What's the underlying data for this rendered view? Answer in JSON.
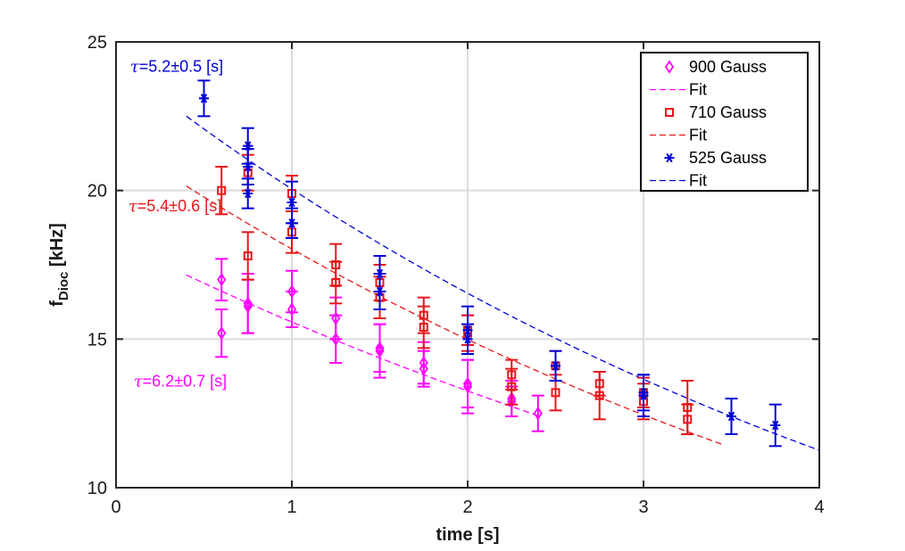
{
  "chart_data": {
    "type": "scatter",
    "xlabel": "time [s]",
    "ylabel_main": "f",
    "ylabel_sub": "Dioc",
    "ylabel_unit": " [kHz]",
    "xlim": [
      0,
      4
    ],
    "ylim": [
      10,
      25
    ],
    "xticks": [
      0,
      1,
      2,
      3,
      4
    ],
    "yticks": [
      10,
      15,
      20,
      25
    ],
    "grid": true,
    "legend_position": "top-right",
    "series": [
      {
        "name": "900 Gauss",
        "color": "#ff00ff",
        "marker": "diamond",
        "fit_name": "Fit",
        "fit": {
          "tau": 6.2,
          "A": 18.3,
          "x_range": [
            0.4,
            2.4
          ]
        },
        "points": [
          {
            "x": 0.6,
            "y": 15.2,
            "err": 0.8
          },
          {
            "x": 0.6,
            "y": 17.0,
            "err": 0.7
          },
          {
            "x": 0.75,
            "y": 16.1,
            "err": 0.9
          },
          {
            "x": 0.75,
            "y": 16.2,
            "err": 1.0
          },
          {
            "x": 1.0,
            "y": 16.0,
            "err": 0.6
          },
          {
            "x": 1.0,
            "y": 16.6,
            "err": 0.7
          },
          {
            "x": 1.25,
            "y": 15.0,
            "err": 0.8
          },
          {
            "x": 1.25,
            "y": 15.7,
            "err": 0.7
          },
          {
            "x": 1.5,
            "y": 14.6,
            "err": 0.9
          },
          {
            "x": 1.5,
            "y": 14.7,
            "err": 0.8
          },
          {
            "x": 1.75,
            "y": 14.0,
            "err": 0.6
          },
          {
            "x": 1.75,
            "y": 14.2,
            "err": 0.7
          },
          {
            "x": 2.0,
            "y": 13.4,
            "err": 0.9
          },
          {
            "x": 2.0,
            "y": 13.5,
            "err": 0.8
          },
          {
            "x": 2.25,
            "y": 12.9,
            "err": 0.5
          },
          {
            "x": 2.25,
            "y": 13.0,
            "err": 0.6
          },
          {
            "x": 2.4,
            "y": 12.5,
            "err": 0.6
          }
        ]
      },
      {
        "name": "710 Gauss",
        "color": "#e8161a",
        "marker": "square",
        "fit_name": "Fit",
        "fit": {
          "tau": 5.4,
          "A": 21.7,
          "x_range": [
            0.4,
            3.45
          ]
        },
        "points": [
          {
            "x": 0.6,
            "y": 20.0,
            "err": 0.8
          },
          {
            "x": 0.75,
            "y": 17.8,
            "err": 0.8
          },
          {
            "x": 0.75,
            "y": 20.6,
            "err": 0.6
          },
          {
            "x": 1.0,
            "y": 18.6,
            "err": 0.7
          },
          {
            "x": 1.0,
            "y": 19.9,
            "err": 0.6
          },
          {
            "x": 1.25,
            "y": 16.9,
            "err": 0.7
          },
          {
            "x": 1.25,
            "y": 17.5,
            "err": 0.7
          },
          {
            "x": 1.5,
            "y": 16.4,
            "err": 0.7
          },
          {
            "x": 1.5,
            "y": 16.9,
            "err": 0.6
          },
          {
            "x": 1.75,
            "y": 15.4,
            "err": 0.7
          },
          {
            "x": 1.75,
            "y": 15.8,
            "err": 0.6
          },
          {
            "x": 2.0,
            "y": 15.2,
            "err": 0.6
          },
          {
            "x": 2.0,
            "y": 15.3,
            "err": 0.5
          },
          {
            "x": 2.25,
            "y": 13.4,
            "err": 0.6
          },
          {
            "x": 2.25,
            "y": 13.8,
            "err": 0.5
          },
          {
            "x": 2.5,
            "y": 13.2,
            "err": 0.6
          },
          {
            "x": 2.5,
            "y": 14.1,
            "err": 0.5
          },
          {
            "x": 2.75,
            "y": 13.1,
            "err": 0.8
          },
          {
            "x": 2.75,
            "y": 13.5,
            "err": 0.4
          },
          {
            "x": 3.0,
            "y": 12.9,
            "err": 0.6
          },
          {
            "x": 3.0,
            "y": 13.2,
            "err": 0.5
          },
          {
            "x": 3.25,
            "y": 12.3,
            "err": 0.5
          },
          {
            "x": 3.25,
            "y": 12.7,
            "err": 0.9
          }
        ]
      },
      {
        "name": "525 Gauss",
        "color": "#0000d8",
        "marker": "asterisk",
        "fit_name": "Fit",
        "fit": {
          "tau": 5.2,
          "A": 24.3,
          "x_range": [
            0.4,
            4.0
          ]
        },
        "points": [
          {
            "x": 0.5,
            "y": 23.1,
            "err": 0.6
          },
          {
            "x": 0.75,
            "y": 19.9,
            "err": 0.5
          },
          {
            "x": 0.75,
            "y": 20.8,
            "err": 0.6
          },
          {
            "x": 0.75,
            "y": 21.5,
            "err": 0.6
          },
          {
            "x": 1.0,
            "y": 18.9,
            "err": 0.5
          },
          {
            "x": 1.0,
            "y": 19.6,
            "err": 0.7
          },
          {
            "x": 1.5,
            "y": 16.6,
            "err": 0.6
          },
          {
            "x": 1.5,
            "y": 17.2,
            "err": 0.6
          },
          {
            "x": 2.0,
            "y": 15.0,
            "err": 0.5
          },
          {
            "x": 2.0,
            "y": 15.3,
            "err": 0.8
          },
          {
            "x": 2.5,
            "y": 14.1,
            "err": 0.5
          },
          {
            "x": 3.0,
            "y": 13.1,
            "err": 0.7
          },
          {
            "x": 3.0,
            "y": 13.2,
            "err": 0.6
          },
          {
            "x": 3.5,
            "y": 12.4,
            "err": 0.6
          },
          {
            "x": 3.75,
            "y": 12.1,
            "err": 0.7
          }
        ]
      }
    ],
    "annotations": [
      {
        "tau_symbol": "τ",
        "text": "=5.2±0.5 [s]",
        "color": "#0000d8",
        "at": [
          0.08,
          24.0
        ]
      },
      {
        "tau_symbol": "τ",
        "text": "=5.4±0.6 [s]",
        "color": "#e8161a",
        "at": [
          0.07,
          19.3
        ]
      },
      {
        "tau_symbol": "τ",
        "text": "=6.2±0.7 [s]",
        "color": "#ff00ff",
        "at": [
          0.1,
          13.4
        ]
      }
    ]
  }
}
